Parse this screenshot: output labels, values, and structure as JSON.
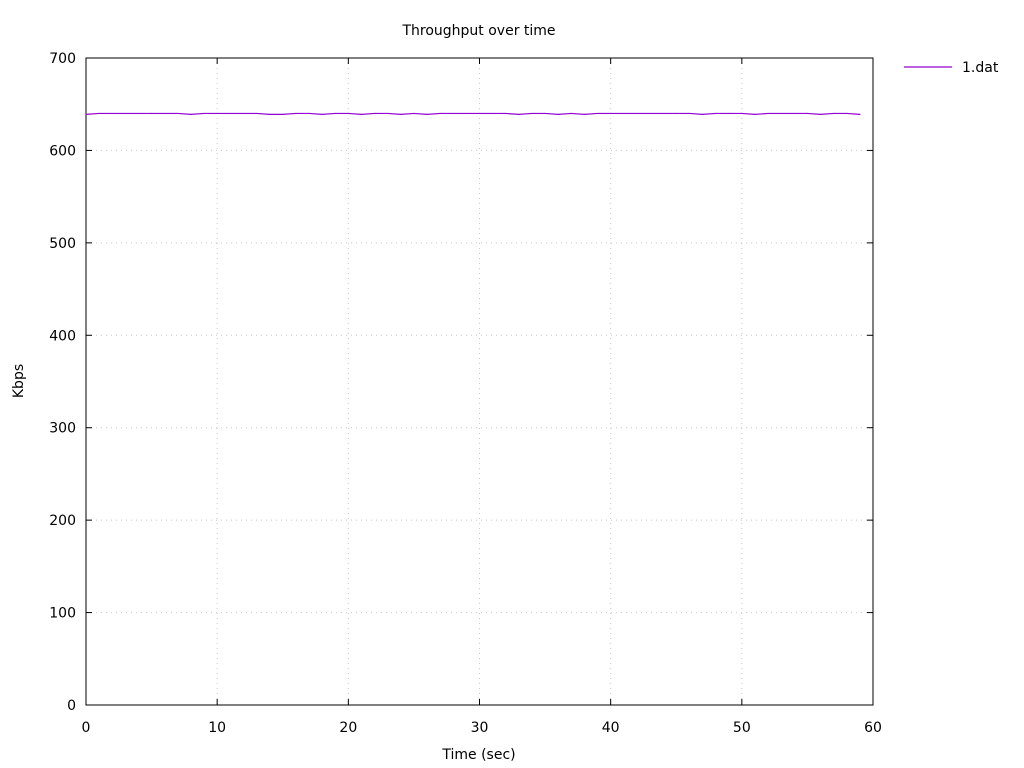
{
  "chart_data": {
    "type": "line",
    "title": "Throughput over time",
    "xlabel": "Time (sec)",
    "ylabel": "Kbps",
    "xlim": [
      0,
      60
    ],
    "ylim": [
      0,
      700
    ],
    "xticks": [
      "0",
      "10",
      "20",
      "30",
      "40",
      "50",
      "60"
    ],
    "yticks": [
      "0",
      "100",
      "200",
      "300",
      "400",
      "500",
      "600",
      "700"
    ],
    "grid": true,
    "legend_position": "top-right, outside plot",
    "series": [
      {
        "name": "1.dat",
        "color": "#9400d3",
        "x": [
          0,
          1,
          2,
          3,
          4,
          5,
          6,
          7,
          8,
          9,
          10,
          11,
          12,
          13,
          14,
          15,
          16,
          17,
          18,
          19,
          20,
          21,
          22,
          23,
          24,
          25,
          26,
          27,
          28,
          29,
          30,
          31,
          32,
          33,
          34,
          35,
          36,
          37,
          38,
          39,
          40,
          41,
          42,
          43,
          44,
          45,
          46,
          47,
          48,
          49,
          50,
          51,
          52,
          53,
          54,
          55,
          56,
          57,
          58,
          59
        ],
        "values": [
          639,
          640,
          640,
          640,
          640,
          640,
          640,
          640,
          639,
          640,
          640,
          640,
          640,
          640,
          639,
          639,
          640,
          640,
          639,
          640,
          640,
          639,
          640,
          640,
          639,
          640,
          639,
          640,
          640,
          640,
          640,
          640,
          640,
          639,
          640,
          640,
          639,
          640,
          639,
          640,
          640,
          640,
          640,
          640,
          640,
          640,
          640,
          639,
          640,
          640,
          640,
          639,
          640,
          640,
          640,
          640,
          639,
          640,
          640,
          639
        ]
      }
    ]
  }
}
